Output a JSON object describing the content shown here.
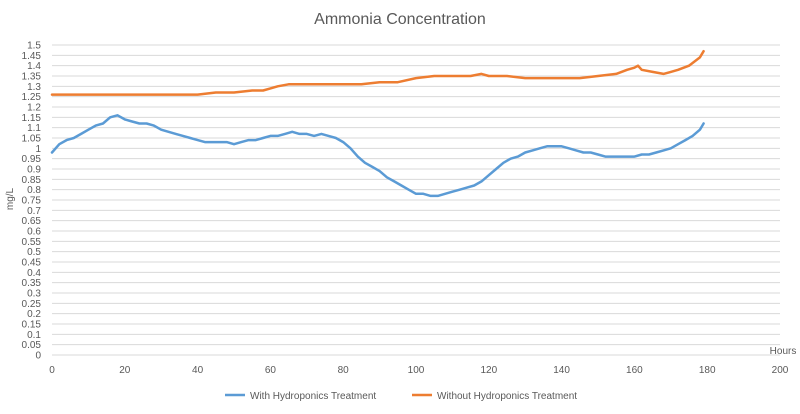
{
  "chart_data": {
    "type": "line",
    "title": "Ammonia Concentration",
    "xlabel": "Hours",
    "ylabel": "mg/L",
    "xlim": [
      0,
      200
    ],
    "ylim": [
      0,
      1.5
    ],
    "x_ticks": [
      "0",
      "20",
      "40",
      "60",
      "80",
      "100",
      "120",
      "140",
      "160",
      "180",
      "200"
    ],
    "y_ticks": [
      "0",
      "0.05",
      "0.1",
      "0.15",
      "0.2",
      "0.25",
      "0.3",
      "0.35",
      "0.4",
      "0.45",
      "0.5",
      "0.55",
      "0.6",
      "0.65",
      "0.7",
      "0.75",
      "0.8",
      "0.85",
      "0.9",
      "0.95",
      "1",
      "1.05",
      "1.1",
      "1.15",
      "1.2",
      "1.25",
      "1.3",
      "1.35",
      "1.4",
      "1.45",
      "1.5"
    ],
    "grid": "horizontal-only",
    "legend": "bottom",
    "series": [
      {
        "name": "With Hydroponics Treatment",
        "color": "#5b9bd5",
        "x": [
          0,
          2,
          4,
          6,
          8,
          10,
          12,
          14,
          16,
          18,
          20,
          22,
          24,
          26,
          28,
          30,
          32,
          34,
          36,
          38,
          40,
          42,
          44,
          46,
          48,
          50,
          52,
          54,
          56,
          58,
          60,
          62,
          64,
          66,
          68,
          70,
          72,
          74,
          76,
          78,
          80,
          82,
          84,
          86,
          88,
          90,
          92,
          94,
          96,
          98,
          100,
          102,
          104,
          106,
          108,
          110,
          112,
          114,
          116,
          118,
          120,
          122,
          124,
          126,
          128,
          130,
          132,
          134,
          136,
          138,
          140,
          142,
          144,
          146,
          148,
          150,
          152,
          154,
          156,
          158,
          160,
          162,
          164,
          166,
          168,
          170,
          172,
          174,
          176,
          178,
          179
        ],
        "y": [
          0.98,
          1.02,
          1.04,
          1.05,
          1.07,
          1.09,
          1.11,
          1.12,
          1.15,
          1.16,
          1.14,
          1.13,
          1.12,
          1.12,
          1.11,
          1.09,
          1.08,
          1.07,
          1.06,
          1.05,
          1.04,
          1.03,
          1.03,
          1.03,
          1.03,
          1.02,
          1.03,
          1.04,
          1.04,
          1.05,
          1.06,
          1.06,
          1.07,
          1.08,
          1.07,
          1.07,
          1.06,
          1.07,
          1.06,
          1.05,
          1.03,
          1.0,
          0.96,
          0.93,
          0.91,
          0.89,
          0.86,
          0.84,
          0.82,
          0.8,
          0.78,
          0.78,
          0.77,
          0.77,
          0.78,
          0.79,
          0.8,
          0.81,
          0.82,
          0.84,
          0.87,
          0.9,
          0.93,
          0.95,
          0.96,
          0.98,
          0.99,
          1.0,
          1.01,
          1.01,
          1.01,
          1.0,
          0.99,
          0.98,
          0.98,
          0.97,
          0.96,
          0.96,
          0.96,
          0.96,
          0.96,
          0.97,
          0.97,
          0.98,
          0.99,
          1.0,
          1.02,
          1.04,
          1.06,
          1.09,
          1.12
        ]
      },
      {
        "name": "Without Hydroponics Treatment",
        "color": "#ed7d31",
        "x": [
          0,
          5,
          10,
          15,
          20,
          25,
          30,
          35,
          40,
          45,
          50,
          55,
          58,
          60,
          62,
          65,
          70,
          75,
          80,
          85,
          90,
          95,
          100,
          105,
          110,
          115,
          118,
          120,
          125,
          130,
          135,
          140,
          145,
          150,
          155,
          158,
          160,
          161,
          162,
          165,
          168,
          170,
          172,
          175,
          178,
          179
        ],
        "y": [
          1.26,
          1.26,
          1.26,
          1.26,
          1.26,
          1.26,
          1.26,
          1.26,
          1.26,
          1.27,
          1.27,
          1.28,
          1.28,
          1.29,
          1.3,
          1.31,
          1.31,
          1.31,
          1.31,
          1.31,
          1.32,
          1.32,
          1.34,
          1.35,
          1.35,
          1.35,
          1.36,
          1.35,
          1.35,
          1.34,
          1.34,
          1.34,
          1.34,
          1.35,
          1.36,
          1.38,
          1.39,
          1.4,
          1.38,
          1.37,
          1.36,
          1.37,
          1.38,
          1.4,
          1.44,
          1.47
        ]
      }
    ]
  }
}
